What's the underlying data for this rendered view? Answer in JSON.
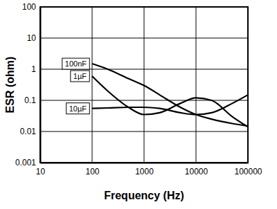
{
  "chart_data": {
    "type": "line",
    "x_label": "Frequency (Hz)",
    "y_label": "ESR (ohm)",
    "log": true,
    "grid": true,
    "xlim": [
      10,
      100000
    ],
    "xticks": [
      10,
      100,
      1000,
      10000,
      100000
    ],
    "ylim": [
      0.001,
      100
    ],
    "yticks": [
      0.001,
      0.01,
      0.1,
      1,
      10,
      100
    ],
    "x": [
      100,
      200,
      500,
      1000,
      2000,
      5000,
      10000,
      20000,
      50000,
      100000
    ],
    "series": [
      {
        "name": "100nF",
        "color": "#000000",
        "values": [
          1.5,
          1.0,
          0.5,
          0.3,
          0.15,
          0.06,
          0.035,
          0.025,
          0.018,
          0.015
        ]
      },
      {
        "name": "1µF",
        "color": "#000000",
        "values": [
          0.6,
          0.2,
          0.06,
          0.035,
          0.04,
          0.08,
          0.12,
          0.1,
          0.03,
          0.014
        ]
      },
      {
        "name": "10µF",
        "color": "#000000",
        "values": [
          0.055,
          0.057,
          0.06,
          0.06,
          0.055,
          0.04,
          0.035,
          0.04,
          0.08,
          0.15
        ]
      }
    ]
  }
}
